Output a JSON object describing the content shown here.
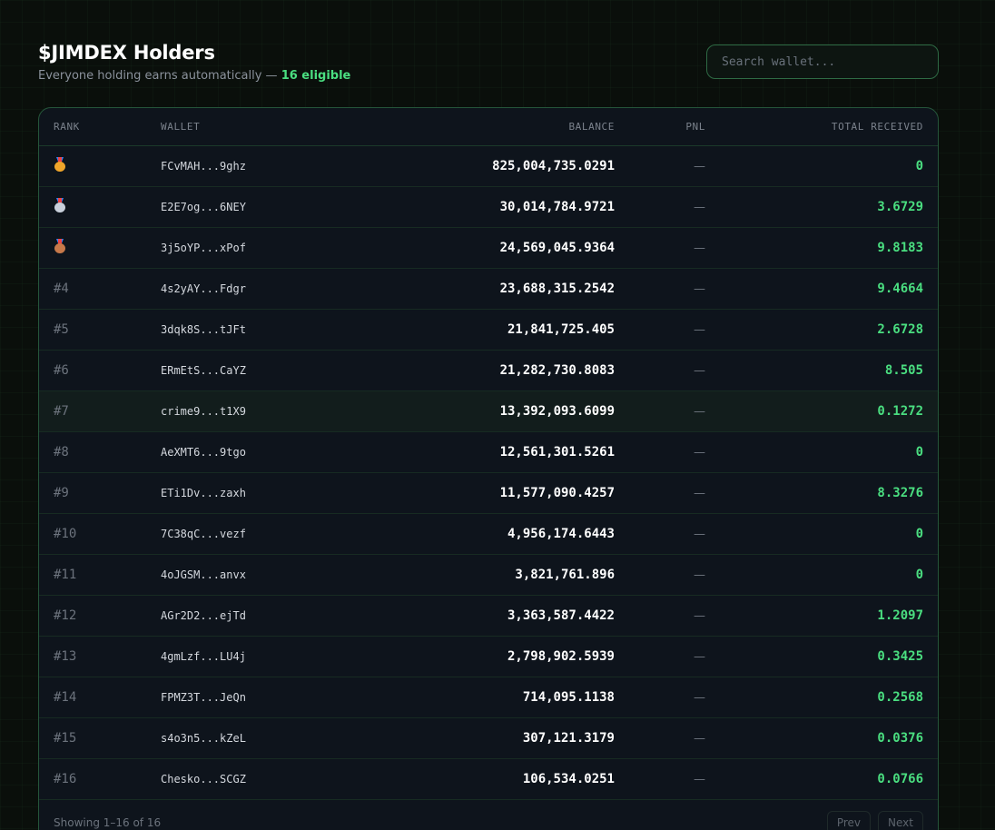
{
  "header": {
    "title": "$JIMDEX Holders",
    "subtitle_prefix": "Everyone holding earns automatically —",
    "eligible_text": "16 eligible"
  },
  "search": {
    "placeholder": "Search wallet..."
  },
  "table": {
    "columns": [
      "RANK",
      "WALLET",
      "BALANCE",
      "PNL",
      "TOTAL RECEIVED"
    ],
    "rows": [
      {
        "rank": "",
        "medal": "gold-medal-icon",
        "wallet": "FCvMAH...9ghz",
        "balance": "825,004,735.0291",
        "pnl": "—",
        "total": "0"
      },
      {
        "rank": "",
        "medal": "silver-medal-icon",
        "wallet": "E2E7og...6NEY",
        "balance": "30,014,784.9721",
        "pnl": "—",
        "total": "3.6729"
      },
      {
        "rank": "",
        "medal": "bronze-medal-icon",
        "wallet": "3j5oYP...xPof",
        "balance": "24,569,045.9364",
        "pnl": "—",
        "total": "9.8183"
      },
      {
        "rank": "#4",
        "wallet": "4s2yAY...Fdgr",
        "balance": "23,688,315.2542",
        "pnl": "—",
        "total": "9.4664"
      },
      {
        "rank": "#5",
        "wallet": "3dqk8S...tJFt",
        "balance": "21,841,725.405",
        "pnl": "—",
        "total": "2.6728"
      },
      {
        "rank": "#6",
        "wallet": "ERmEtS...CaYZ",
        "balance": "21,282,730.8083",
        "pnl": "—",
        "total": "8.505"
      },
      {
        "rank": "#7",
        "wallet": "crime9...t1X9",
        "balance": "13,392,093.6099",
        "pnl": "—",
        "total": "0.1272",
        "highlighted": true
      },
      {
        "rank": "#8",
        "wallet": "AeXMT6...9tgo",
        "balance": "12,561,301.5261",
        "pnl": "—",
        "total": "0"
      },
      {
        "rank": "#9",
        "wallet": "ETi1Dv...zaxh",
        "balance": "11,577,090.4257",
        "pnl": "—",
        "total": "8.3276"
      },
      {
        "rank": "#10",
        "wallet": "7C38qC...vezf",
        "balance": "4,956,174.6443",
        "pnl": "—",
        "total": "0"
      },
      {
        "rank": "#11",
        "wallet": "4oJGSM...anvx",
        "balance": "3,821,761.896",
        "pnl": "—",
        "total": "0"
      },
      {
        "rank": "#12",
        "wallet": "AGr2D2...ejTd",
        "balance": "3,363,587.4422",
        "pnl": "—",
        "total": "1.2097"
      },
      {
        "rank": "#13",
        "wallet": "4gmLzf...LU4j",
        "balance": "2,798,902.5939",
        "pnl": "—",
        "total": "0.3425"
      },
      {
        "rank": "#14",
        "wallet": "FPMZ3T...JeQn",
        "balance": "714,095.1138",
        "pnl": "—",
        "total": "0.2568"
      },
      {
        "rank": "#15",
        "wallet": "s4o3n5...kZeL",
        "balance": "307,121.3179",
        "pnl": "—",
        "total": "0.0376"
      },
      {
        "rank": "#16",
        "wallet": "Chesko...SCGZ",
        "balance": "106,534.0251",
        "pnl": "—",
        "total": "0.0766"
      }
    ]
  },
  "footer": {
    "showing": "Showing 1–16 of 16",
    "prev_label": "Prev",
    "next_label": "Next"
  },
  "colors": {
    "accent_green": "#4ade80",
    "border_green": "#25553a",
    "background": "#0a0f0b"
  }
}
